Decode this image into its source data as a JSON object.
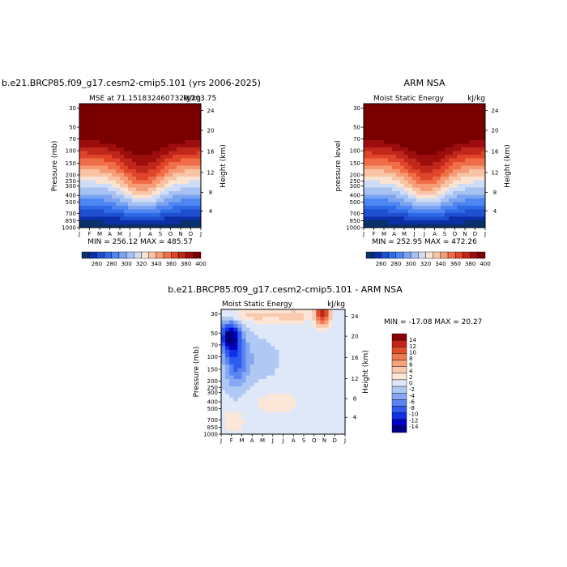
{
  "colors": {
    "scale_positive": [
      "#08306b",
      "#0c2fa8",
      "#1f4fd0",
      "#2e6ae6",
      "#4d86f0",
      "#7ba3f0",
      "#a6c1f2",
      "#cfdcf5",
      "#fbe3d2",
      "#f8c4a5",
      "#f59b76",
      "#ef6e47",
      "#e0452a",
      "#c0261a",
      "#9c0d0d",
      "#7a0000"
    ],
    "scale_diff": [
      "#000080",
      "#0000c8",
      "#1030e6",
      "#2e5cf0",
      "#5a85f0",
      "#86a8f2",
      "#b0c8f4",
      "#dfe8f8",
      "#fbe6d8",
      "#f9c9ae",
      "#f5a47e",
      "#ef7a4f",
      "#e04e2c",
      "#c0261a",
      "#8b0000"
    ]
  },
  "header": {
    "left_title": "b.e21.BRCP85.f09_g17.cesm2-cmip5.101 (yrs 2006-2025)",
    "right_title": "ARM NSA",
    "bottom_title": "b.e21.BRCP85.f09_g17.cesm2-cmip5.101 - ARM NSA"
  },
  "chart_data": [
    {
      "type": "heatmap",
      "name": "model",
      "subtitle_left": "MSE at 71.1518324607329/203.75",
      "subtitle_right": "kJ/kg",
      "ylabel_left": "Pressure (mb)",
      "ylabel_right": "Height (km)",
      "x_ticks": [
        "J",
        "F",
        "M",
        "A",
        "M",
        "J",
        "J",
        "A",
        "S",
        "O",
        "N",
        "D",
        "J"
      ],
      "p_ticks": [
        "30",
        "50",
        "70",
        "100",
        "150",
        "200",
        "250",
        "300",
        "400",
        "500",
        "700",
        "850",
        "1000"
      ],
      "z_ticks": [
        "24",
        "20",
        "16",
        "12",
        "8",
        "4"
      ],
      "stats": "MIN = 256.12 MAX = 485.57",
      "colorbar_labels": [
        "260",
        "280",
        "300",
        "320",
        "340",
        "360",
        "380",
        "400"
      ]
    },
    {
      "type": "heatmap",
      "name": "obs",
      "subtitle_left": "Moist Static Energy",
      "subtitle_right": "kJ/kg",
      "ylabel_left": "pressure level",
      "ylabel_right": "Height (km)",
      "x_ticks": [
        "J",
        "F",
        "M",
        "A",
        "M",
        "J",
        "J",
        "A",
        "S",
        "O",
        "N",
        "D",
        "J"
      ],
      "p_ticks": [
        "30",
        "50",
        "70",
        "100",
        "150",
        "200",
        "250",
        "300",
        "400",
        "500",
        "700",
        "850",
        "1000"
      ],
      "z_ticks": [
        "24",
        "20",
        "16",
        "12",
        "8",
        "4"
      ],
      "stats": "MIN = 252.95 MAX = 472.26",
      "colorbar_labels": [
        "260",
        "280",
        "300",
        "320",
        "340",
        "360",
        "380",
        "400"
      ]
    },
    {
      "type": "heatmap",
      "name": "difference",
      "subtitle_left": "Moist Static Energy",
      "subtitle_right": "kJ/kg",
      "ylabel_left": "Pressure (mb)",
      "ylabel_right": "Height (km)",
      "x_ticks": [
        "J",
        "F",
        "M",
        "A",
        "M",
        "J",
        "J",
        "A",
        "S",
        "O",
        "N",
        "D",
        "J"
      ],
      "p_ticks": [
        "30",
        "50",
        "70",
        "100",
        "150",
        "200",
        "250",
        "300",
        "400",
        "500",
        "700",
        "850",
        "1000"
      ],
      "z_ticks": [
        "24",
        "20",
        "16",
        "12",
        "8",
        "4"
      ],
      "stats": "MIN = -17.08 MAX =  20.27",
      "colorbar_labels": [
        "14",
        "12",
        "10",
        "8",
        "6",
        "4",
        "2",
        "0",
        "-2",
        "-4",
        "-6",
        "-8",
        "-10",
        "-12",
        "-14"
      ]
    }
  ]
}
